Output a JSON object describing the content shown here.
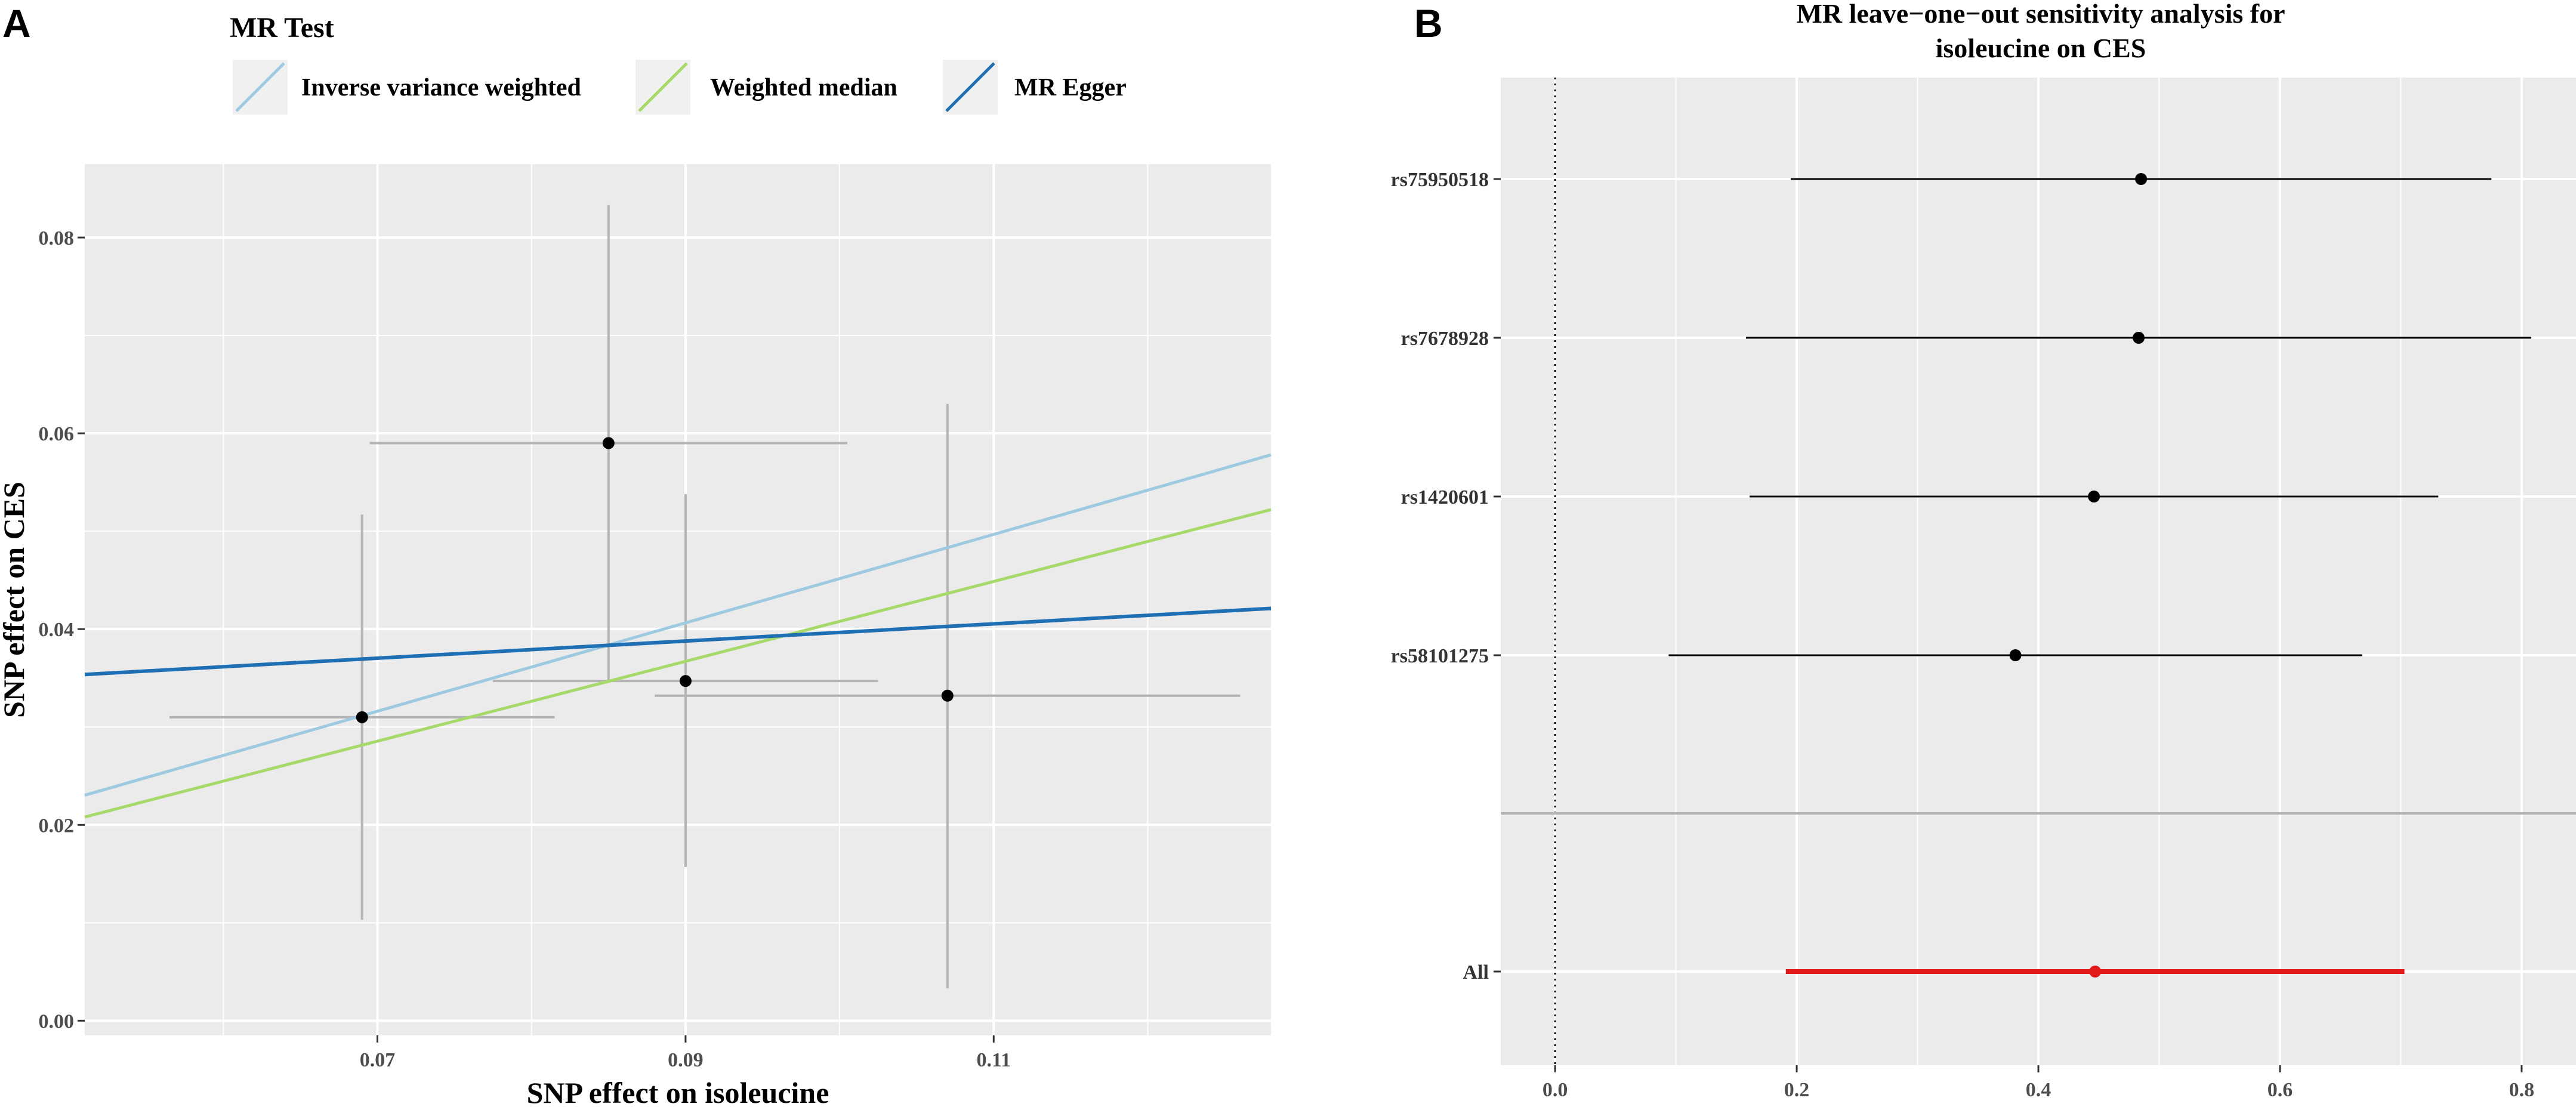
{
  "panel_labels": {
    "a": "A",
    "b": "B"
  },
  "colors": {
    "panel_bg": "#ebebeb",
    "grid": "#ffffff",
    "ivw": "#9ecae1",
    "wm": "#a6d96a",
    "egger": "#1f6fb4",
    "errorbar": "#b5b5b5",
    "point": "#000000",
    "all": "#e31a1c"
  },
  "chart_data": [
    {
      "type": "scatter",
      "title": "",
      "xlabel": "SNP effect on isoleucine",
      "ylabel": "SNP effect on CES",
      "xlim": [
        0.051,
        0.128
      ],
      "ylim": [
        -0.0015,
        0.0875
      ],
      "xticks": [
        0.07,
        0.09,
        0.11
      ],
      "xtick_labels": [
        "0.07",
        "0.09",
        "0.11"
      ],
      "yticks": [
        0.0,
        0.02,
        0.04,
        0.06,
        0.08
      ],
      "ytick_labels": [
        "0.00",
        "0.02",
        "0.04",
        "0.06",
        "0.08"
      ],
      "legend": {
        "title": "MR Test",
        "entries": [
          "Inverse variance weighted",
          "Weighted median",
          "MR Egger"
        ]
      },
      "points": [
        {
          "x": 0.069,
          "y": 0.031,
          "x_lo": 0.0565,
          "x_hi": 0.0815,
          "y_lo": 0.0103,
          "y_hi": 0.0517
        },
        {
          "x": 0.085,
          "y": 0.059,
          "x_lo": 0.0695,
          "x_hi": 0.1005,
          "y_lo": 0.0348,
          "y_hi": 0.0833
        },
        {
          "x": 0.09,
          "y": 0.0347,
          "x_lo": 0.0775,
          "x_hi": 0.1025,
          "y_lo": 0.0157,
          "y_hi": 0.0538
        },
        {
          "x": 0.107,
          "y": 0.0332,
          "x_lo": 0.088,
          "x_hi": 0.126,
          "y_lo": 0.0033,
          "y_hi": 0.063
        }
      ],
      "lines": [
        {
          "name": "Inverse variance weighted",
          "intercept": 0.0,
          "slope": 0.4516
        },
        {
          "name": "Weighted median",
          "intercept": 0.0,
          "slope": 0.4079
        },
        {
          "name": "MR Egger",
          "intercept": 0.0309,
          "slope": 0.0876
        }
      ]
    },
    {
      "type": "forest",
      "title": "MR leave−one−out sensitivity analysis for",
      "title_line2": "isoleucine on CES",
      "xlim": [
        -0.045,
        0.845
      ],
      "xticks": [
        0.0,
        0.2,
        0.4,
        0.6,
        0.8
      ],
      "xtick_labels": [
        "0.0",
        "0.2",
        "0.4",
        "0.6",
        "0.8"
      ],
      "reference_line_x": 0.0,
      "rows": [
        {
          "label": "rs75950518",
          "est": 0.485,
          "lo": 0.195,
          "hi": 0.775
        },
        {
          "label": "rs7678928",
          "est": 0.483,
          "lo": 0.158,
          "hi": 0.808
        },
        {
          "label": "rs1420601",
          "est": 0.446,
          "lo": 0.161,
          "hi": 0.731
        },
        {
          "label": "rs58101275",
          "est": 0.381,
          "lo": 0.094,
          "hi": 0.668
        }
      ],
      "overall": {
        "label": "All",
        "est": 0.447,
        "lo": 0.191,
        "hi": 0.703
      }
    }
  ]
}
